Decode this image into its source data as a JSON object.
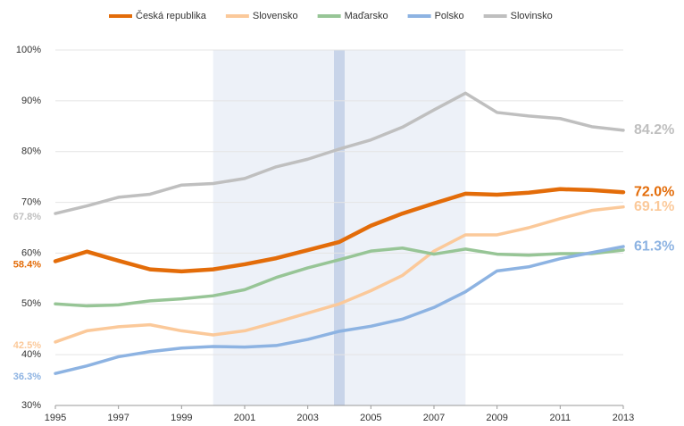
{
  "chart_data": {
    "type": "line",
    "x": [
      1995,
      1996,
      1997,
      1998,
      1999,
      2000,
      2001,
      2002,
      2003,
      2004,
      2005,
      2006,
      2007,
      2008,
      2009,
      2010,
      2011,
      2012,
      2013
    ],
    "series": [
      {
        "name": "Česká republika",
        "color": "#e36c09",
        "values": [
          58.4,
          60.3,
          58.5,
          56.8,
          56.4,
          56.8,
          57.8,
          59.0,
          60.6,
          62.2,
          65.4,
          67.8,
          69.8,
          71.7,
          71.5,
          71.9,
          72.6,
          72.4,
          72.0
        ],
        "value_labels": [
          "58.4%",
          null,
          null,
          null,
          null,
          null,
          null,
          null,
          null,
          null,
          null,
          null,
          null,
          null,
          null,
          null,
          null,
          null,
          "72.0%"
        ]
      },
      {
        "name": "Slovensko",
        "color": "#fbc99a",
        "values": [
          42.5,
          44.7,
          45.5,
          45.9,
          44.7,
          43.9,
          44.7,
          46.4,
          48.2,
          50.0,
          52.6,
          55.6,
          60.4,
          63.6,
          63.6,
          65.0,
          66.8,
          68.4,
          69.1
        ],
        "value_labels": [
          "42.5%",
          null,
          null,
          null,
          null,
          null,
          null,
          null,
          null,
          null,
          null,
          null,
          null,
          null,
          null,
          null,
          null,
          null,
          "69.1%"
        ]
      },
      {
        "name": "Maďarsko",
        "color": "#97c596",
        "values": [
          50.0,
          49.6,
          49.8,
          50.6,
          51.0,
          51.6,
          52.8,
          55.2,
          57.1,
          58.7,
          60.4,
          61.0,
          59.8,
          60.8,
          59.8,
          59.6,
          59.9,
          59.9,
          60.6
        ]
      },
      {
        "name": "Polsko",
        "color": "#8db3e2",
        "values": [
          36.3,
          37.8,
          39.6,
          40.6,
          41.3,
          41.6,
          41.5,
          41.8,
          43.0,
          44.6,
          45.6,
          47.0,
          49.3,
          52.4,
          56.5,
          57.3,
          58.9,
          60.1,
          61.3
        ],
        "value_labels": [
          "36.3%",
          null,
          null,
          null,
          null,
          null,
          null,
          null,
          null,
          null,
          null,
          null,
          null,
          null,
          null,
          null,
          null,
          null,
          "61.3%"
        ]
      },
      {
        "name": "Slovinsko",
        "color": "#bfbfbf",
        "values": [
          67.8,
          69.3,
          71.0,
          71.6,
          73.4,
          73.7,
          74.7,
          77.0,
          78.5,
          80.5,
          82.3,
          84.8,
          88.2,
          91.5,
          87.7,
          87.0,
          86.5,
          84.9,
          84.2
        ],
        "value_labels": [
          "67.8%",
          null,
          null,
          null,
          null,
          null,
          null,
          null,
          null,
          null,
          null,
          null,
          null,
          null,
          null,
          null,
          null,
          null,
          "84.2%"
        ]
      }
    ],
    "shaded_range": [
      2000,
      2008
    ],
    "highlight_x": 2004,
    "xlim": [
      1995,
      2013
    ],
    "xticks": [
      1995,
      1997,
      1999,
      2001,
      2003,
      2005,
      2007,
      2009,
      2011,
      2013
    ],
    "ylim": [
      30,
      100
    ],
    "yticks": [
      {
        "value": 30,
        "label": "30%"
      },
      {
        "value": 40,
        "label": "40%"
      },
      {
        "value": 50,
        "label": "50%"
      },
      {
        "value": 60,
        "label": "60%"
      },
      {
        "value": 70,
        "label": "70%"
      },
      {
        "value": 80,
        "label": "80%"
      },
      {
        "value": 90,
        "label": "90%"
      },
      {
        "value": 100,
        "label": "100%"
      }
    ],
    "grid": true,
    "legend": "top"
  }
}
